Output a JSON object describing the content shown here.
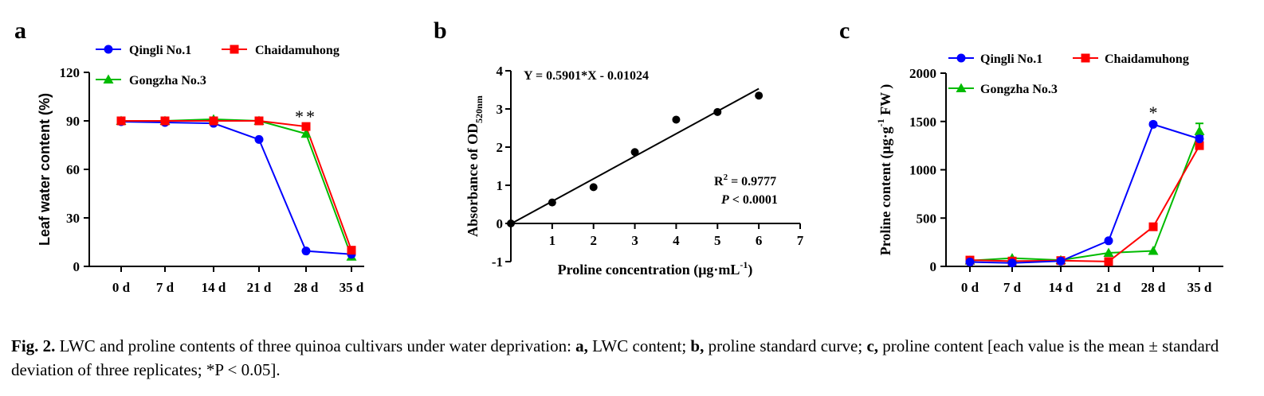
{
  "panels": [
    {
      "letter": "a",
      "chart_data": {
        "type": "line",
        "categories": [
          "0 d",
          "7 d",
          "14 d",
          "21 d",
          "28 d",
          "35 d"
        ],
        "ylabel": "Leaf water content (%)",
        "ylim": [
          0,
          120
        ],
        "yticks": [
          0,
          30,
          60,
          90,
          120
        ],
        "series": [
          {
            "name": "Qingli No.1",
            "color": "#0000ff",
            "marker": "circle",
            "values": [
              89.5,
              89,
              88.5,
              78.5,
              9.5,
              7.5
            ]
          },
          {
            "name": "Chaidamuhong",
            "color": "#ff0000",
            "marker": "square",
            "values": [
              90,
              90,
              90,
              90,
              86.5,
              10
            ]
          },
          {
            "name": "Gongzha No.3",
            "color": "#00bb00",
            "marker": "triangle",
            "values": [
              90,
              90,
              91,
              90,
              82,
              6
            ]
          }
        ],
        "annotations": [
          {
            "text": "**",
            "category": "28 d",
            "y": 96
          }
        ]
      }
    },
    {
      "letter": "b",
      "chart_data": {
        "type": "scatter",
        "xlabel": "Proline concentration (μg·mL",
        "xlabel_sup": "-1",
        "xlabel_end": ")",
        "ylabel_main": "Absorbance of OD",
        "ylabel_sub": "520nm",
        "xlim": [
          0,
          7
        ],
        "ylim": [
          -1,
          4
        ],
        "xticks": [
          0,
          1,
          2,
          3,
          4,
          5,
          6,
          7
        ],
        "yticks": [
          -1,
          0,
          1,
          2,
          3,
          4
        ],
        "points": [
          {
            "x": 0,
            "y": 0
          },
          {
            "x": 1,
            "y": 0.55
          },
          {
            "x": 2,
            "y": 0.95
          },
          {
            "x": 3,
            "y": 1.87
          },
          {
            "x": 4,
            "y": 2.72
          },
          {
            "x": 5,
            "y": 2.92
          },
          {
            "x": 6,
            "y": 3.35
          }
        ],
        "fit": {
          "slope": 0.5901,
          "intercept": -0.01024,
          "x_range": [
            0,
            6
          ]
        },
        "equation": "Y = 0.5901*X - 0.01024",
        "r2_label": "R",
        "r2_sup": "2",
        "r2_value": " = 0.9777",
        "p_label": "P",
        "p_value": " < 0.0001"
      }
    },
    {
      "letter": "c",
      "chart_data": {
        "type": "line",
        "categories": [
          "0 d",
          "7 d",
          "14 d",
          "21 d",
          "28 d",
          "35 d"
        ],
        "ylabel_main": "Proline content (μg·g",
        "ylabel_sup": "-1",
        "ylabel_end": " FW )",
        "ylim": [
          0,
          2000
        ],
        "yticks": [
          0,
          500,
          1000,
          1500,
          2000
        ],
        "series": [
          {
            "name": "Qingli No.1",
            "color": "#0000ff",
            "marker": "circle",
            "values": [
              45,
              35,
              55,
              265,
              1470,
              1320
            ],
            "errors": [
              0,
              0,
              0,
              15,
              20,
              30
            ]
          },
          {
            "name": "Chaidamuhong",
            "color": "#ff0000",
            "marker": "square",
            "values": [
              65,
              55,
              60,
              50,
              410,
              1250
            ],
            "errors": [
              0,
              0,
              0,
              0,
              15,
              40
            ]
          },
          {
            "name": "Gongzha No.3",
            "color": "#00bb00",
            "marker": "triangle",
            "values": [
              60,
              85,
              65,
              140,
              160,
              1400
            ],
            "errors": [
              0,
              0,
              0,
              0,
              0,
              80
            ]
          }
        ],
        "annotations": [
          {
            "text": "*",
            "category": "28 d",
            "y": 1630
          }
        ]
      }
    }
  ],
  "caption": {
    "fig_label": "Fig. 2.",
    "part1": " LWC and proline contents of three quinoa cultivars under water deprivation: ",
    "a_label": "a,",
    "part2": " LWC content; ",
    "b_label": "b,",
    "part3": " proline standard curve; ",
    "c_label": "c,",
    "part4": " proline content [each value is the mean ± standard deviation of three replicates; *P < 0.05]."
  }
}
